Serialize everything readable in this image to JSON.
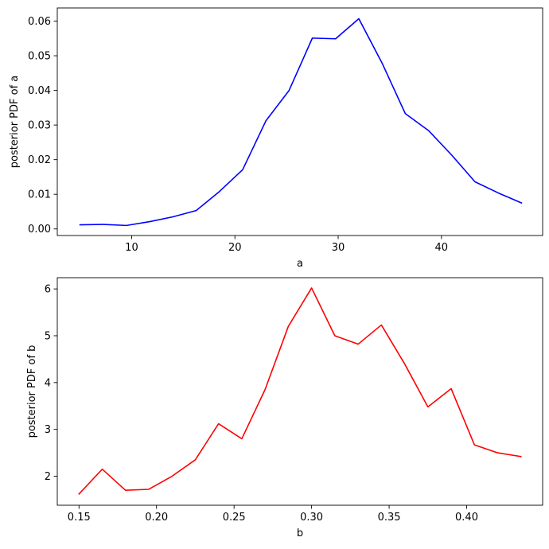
{
  "chart_data": [
    {
      "type": "line",
      "xlabel": "a",
      "ylabel": "posterior PDF of a",
      "xlim": [
        2.8,
        49.8
      ],
      "ylim": [
        -0.0019,
        0.0638
      ],
      "xticks": [
        10,
        20,
        30,
        40
      ],
      "xtick_labels": [
        "10",
        "20",
        "30",
        "40"
      ],
      "yticks": [
        0.0,
        0.01,
        0.02,
        0.03,
        0.04,
        0.05,
        0.06
      ],
      "ytick_labels": [
        "0.00",
        "0.01",
        "0.02",
        "0.03",
        "0.04",
        "0.05",
        "0.06"
      ],
      "grid": false,
      "series": [
        {
          "color": "#0000ff",
          "x": [
            5.0,
            7.25,
            9.5,
            11.75,
            14.0,
            16.25,
            18.5,
            20.75,
            23.0,
            25.25,
            27.5,
            29.75,
            32.0,
            34.25,
            36.5,
            38.75,
            41.0,
            43.25,
            45.5,
            47.75
          ],
          "y": [
            0.0012,
            0.0013,
            0.001,
            0.0021,
            0.0035,
            0.0053,
            0.0108,
            0.0171,
            0.0312,
            0.04,
            0.0551,
            0.0549,
            0.0607,
            0.0479,
            0.0333,
            0.0284,
            0.0213,
            0.0136,
            0.0104,
            0.0075
          ]
        }
      ]
    },
    {
      "type": "line",
      "xlabel": "b",
      "ylabel": "posterior PDF of b",
      "xlim": [
        0.136,
        0.449
      ],
      "ylim": [
        1.38,
        6.24
      ],
      "xticks": [
        0.15,
        0.2,
        0.25,
        0.3,
        0.35,
        0.4
      ],
      "xtick_labels": [
        "0.15",
        "0.20",
        "0.25",
        "0.30",
        "0.35",
        "0.40"
      ],
      "yticks": [
        2,
        3,
        4,
        5,
        6
      ],
      "ytick_labels": [
        "2",
        "3",
        "4",
        "5",
        "6"
      ],
      "grid": false,
      "series": [
        {
          "color": "#ff0000",
          "x": [
            0.15,
            0.165,
            0.18,
            0.195,
            0.21,
            0.225,
            0.24,
            0.255,
            0.27,
            0.285,
            0.3,
            0.315,
            0.33,
            0.345,
            0.36,
            0.375,
            0.39,
            0.405,
            0.42,
            0.435
          ],
          "y": [
            1.62,
            2.15,
            1.7,
            1.72,
            2.0,
            2.35,
            3.12,
            2.8,
            3.85,
            5.2,
            6.02,
            5.0,
            4.82,
            5.23,
            4.4,
            3.48,
            3.87,
            2.67,
            2.5,
            2.42
          ]
        }
      ]
    }
  ]
}
